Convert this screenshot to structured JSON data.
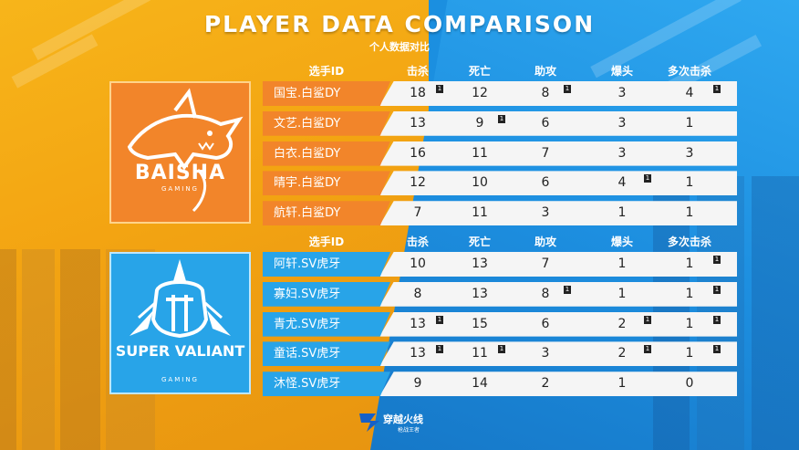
{
  "title": "PLAYER DATA COMPARISON",
  "subtitle": "个人数据对比",
  "columns": {
    "player_id": "选手ID",
    "kills": "击杀",
    "deaths": "死亡",
    "assists": "助攻",
    "headshots": "爆头",
    "multikills": "多次击杀"
  },
  "teams": [
    {
      "name": "BAISHA",
      "sub": "GAMING",
      "color": "#f2852a",
      "players": [
        {
          "id": "国宝.白鲨DY",
          "kills": "18",
          "deaths": "12",
          "assists": "8",
          "headshots": "3",
          "multikills": "4",
          "badges": [
            "kills",
            "assists",
            "multikills"
          ]
        },
        {
          "id": "文艺.白鲨DY",
          "kills": "13",
          "deaths": "9",
          "assists": "6",
          "headshots": "3",
          "multikills": "1",
          "badges": [
            "deaths"
          ]
        },
        {
          "id": "白衣.白鲨DY",
          "kills": "16",
          "deaths": "11",
          "assists": "7",
          "headshots": "3",
          "multikills": "3",
          "badges": []
        },
        {
          "id": "晴宇.白鲨DY",
          "kills": "12",
          "deaths": "10",
          "assists": "6",
          "headshots": "4",
          "multikills": "1",
          "badges": [
            "headshots"
          ]
        },
        {
          "id": "航轩.白鲨DY",
          "kills": "7",
          "deaths": "11",
          "assists": "3",
          "headshots": "1",
          "multikills": "1",
          "badges": []
        }
      ]
    },
    {
      "name": "SUPER VALIANT",
      "sub": "GAMING",
      "color": "#28a4e8",
      "players": [
        {
          "id": "阿轩.SV虎牙",
          "kills": "10",
          "deaths": "13",
          "assists": "7",
          "headshots": "1",
          "multikills": "1",
          "badges": [
            "multikills"
          ]
        },
        {
          "id": "寡妇.SV虎牙",
          "kills": "8",
          "deaths": "13",
          "assists": "8",
          "headshots": "1",
          "multikills": "1",
          "badges": [
            "assists",
            "multikills"
          ]
        },
        {
          "id": "青尤.SV虎牙",
          "kills": "13",
          "deaths": "15",
          "assists": "6",
          "headshots": "2",
          "multikills": "1",
          "badges": [
            "kills",
            "headshots",
            "multikills"
          ]
        },
        {
          "id": "童话.SV虎牙",
          "kills": "13",
          "deaths": "11",
          "assists": "3",
          "headshots": "2",
          "multikills": "1",
          "badges": [
            "kills",
            "deaths",
            "headshots",
            "multikills"
          ]
        },
        {
          "id": "沐怪.SV虎牙",
          "kills": "9",
          "deaths": "14",
          "assists": "2",
          "headshots": "1",
          "multikills": "0",
          "badges": []
        }
      ]
    }
  ],
  "badge_label": "1",
  "footer": {
    "brand": "穿越火线",
    "tagline": "枪战王者"
  }
}
